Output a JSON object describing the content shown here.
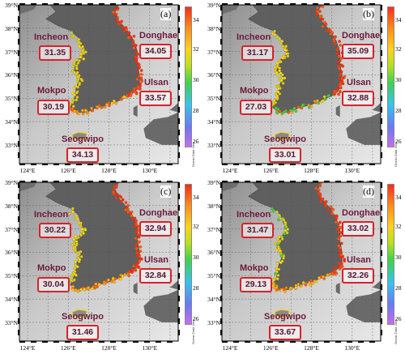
{
  "map": {
    "lat_labels": [
      "39°N",
      "38°N",
      "37°N",
      "36°N",
      "35°N",
      "34°N",
      "33°N"
    ],
    "lon_labels": [
      "124°E",
      "126°E",
      "128°E",
      "130°E"
    ],
    "colorbar": {
      "ticks": [
        "34",
        "32",
        "30",
        "28",
        "26"
      ],
      "title": "Ocean Data View"
    }
  },
  "panels": [
    {
      "label": "(a)",
      "stations": [
        {
          "name": "Incheon",
          "value": "31.35"
        },
        {
          "name": "Donghae",
          "value": "34.05"
        },
        {
          "name": "Ulsan",
          "value": "33.57"
        },
        {
          "name": "Mokpo",
          "value": "30.19"
        },
        {
          "name": "Seogwipo",
          "value": "34.13"
        }
      ]
    },
    {
      "label": "(b)",
      "stations": [
        {
          "name": "Incheon",
          "value": "31.17"
        },
        {
          "name": "Donghae",
          "value": "35.09"
        },
        {
          "name": "Ulsan",
          "value": "32.88"
        },
        {
          "name": "Mokpo",
          "value": "27.03"
        },
        {
          "name": "Seogwipo",
          "value": "33.01"
        }
      ]
    },
    {
      "label": "(c)",
      "stations": [
        {
          "name": "Incheon",
          "value": "30.22"
        },
        {
          "name": "Donghae",
          "value": "32.94"
        },
        {
          "name": "Ulsan",
          "value": "32.84"
        },
        {
          "name": "Mokpo",
          "value": "30.04"
        },
        {
          "name": "Seogwipo",
          "value": "31.46"
        }
      ]
    },
    {
      "label": "(d)",
      "stations": [
        {
          "name": "Incheon",
          "value": "31.47"
        },
        {
          "name": "Donghae",
          "value": "33.02"
        },
        {
          "name": "Ulsan",
          "value": "32.26"
        },
        {
          "name": "Mokpo",
          "value": "29.13"
        },
        {
          "name": "Seogwipo",
          "value": "33.67"
        }
      ]
    }
  ]
}
